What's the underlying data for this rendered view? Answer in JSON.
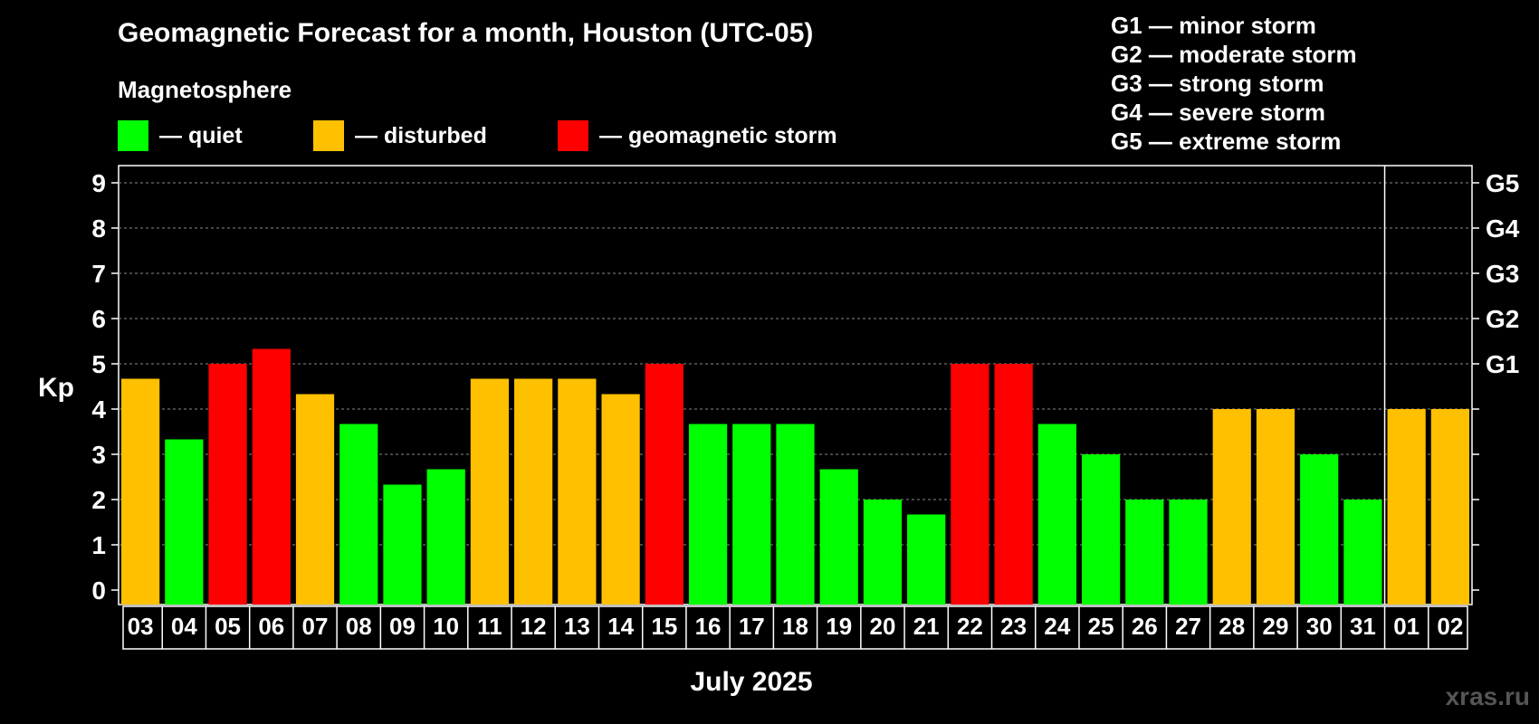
{
  "title": "Geomagnetic Forecast for a month, Houston (UTC-05)",
  "subtitle": "Magnetosphere",
  "legend": [
    {
      "label": "— quiet",
      "color": "#00ff00"
    },
    {
      "label": "— disturbed",
      "color": "#ffc000"
    },
    {
      "label": "— geomagnetic storm",
      "color": "#ff0000"
    }
  ],
  "storm_scale": [
    "G1 — minor storm",
    "G2 — moderate storm",
    "G3 — strong storm",
    "G4 — severe storm",
    "G5 — extreme storm"
  ],
  "watermark": "xras.ru",
  "chart_data": {
    "type": "bar",
    "title": "Geomagnetic Forecast for a month, Houston (UTC-05)",
    "xlabel": "July 2025",
    "ylabel": "Kp",
    "ylim": [
      0,
      9
    ],
    "yticks": [
      "0",
      "1",
      "2",
      "3",
      "4",
      "5",
      "6",
      "7",
      "8",
      "9"
    ],
    "right_axis_labels": [
      {
        "value": 5,
        "label": "G1"
      },
      {
        "value": 6,
        "label": "G2"
      },
      {
        "value": 7,
        "label": "G3"
      },
      {
        "value": 8,
        "label": "G4"
      },
      {
        "value": 9,
        "label": "G5"
      }
    ],
    "month_boundary_after": "31",
    "categories": [
      "03",
      "04",
      "05",
      "06",
      "07",
      "08",
      "09",
      "10",
      "11",
      "12",
      "13",
      "14",
      "15",
      "16",
      "17",
      "18",
      "19",
      "20",
      "21",
      "22",
      "23",
      "24",
      "25",
      "26",
      "27",
      "28",
      "29",
      "30",
      "31",
      "01",
      "02"
    ],
    "values": [
      4.67,
      3.33,
      5.0,
      5.33,
      4.33,
      3.67,
      2.33,
      2.67,
      4.67,
      4.67,
      4.67,
      4.33,
      5.0,
      3.67,
      3.67,
      3.67,
      2.67,
      2.0,
      1.67,
      5.0,
      5.0,
      3.67,
      3.0,
      2.0,
      2.0,
      4.0,
      4.0,
      3.0,
      2.0,
      4.0,
      4.0
    ],
    "status": [
      "disturbed",
      "quiet",
      "storm",
      "storm",
      "disturbed",
      "quiet",
      "quiet",
      "quiet",
      "disturbed",
      "disturbed",
      "disturbed",
      "disturbed",
      "storm",
      "quiet",
      "quiet",
      "quiet",
      "quiet",
      "quiet",
      "quiet",
      "storm",
      "storm",
      "quiet",
      "quiet",
      "quiet",
      "quiet",
      "disturbed",
      "disturbed",
      "quiet",
      "quiet",
      "disturbed",
      "disturbed"
    ],
    "status_colors": {
      "quiet": "#00ff00",
      "disturbed": "#ffc000",
      "storm": "#ff0000"
    },
    "grid": true
  }
}
